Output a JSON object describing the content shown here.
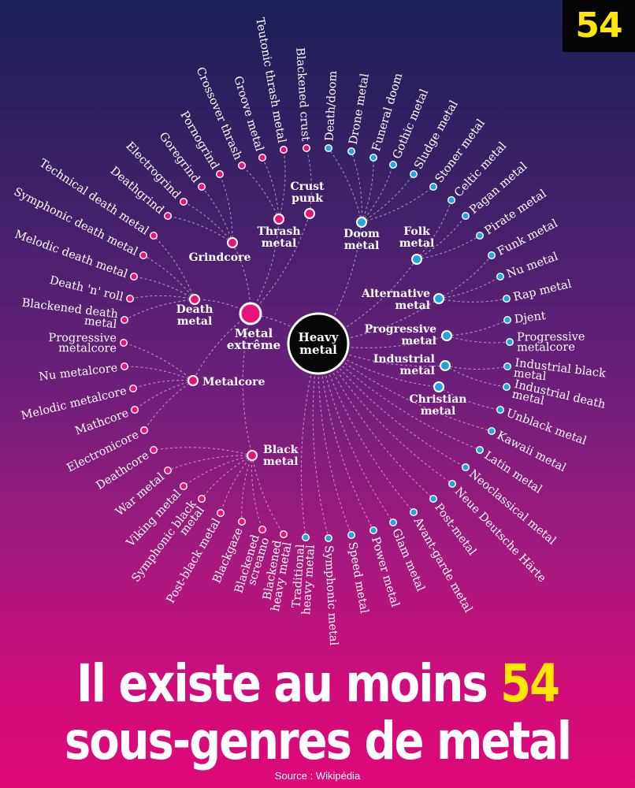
{
  "badge": "54",
  "center": {
    "label_lines": [
      "Heavy",
      "metal"
    ]
  },
  "hub_labels": {
    "metal_extreme": [
      "Metal",
      "extrême"
    ],
    "thrash": [
      "Thrash",
      "metal"
    ],
    "crust": [
      "Crust",
      "punk"
    ],
    "grindcore": [
      "Grindcore"
    ],
    "death": [
      "Death",
      "metal"
    ],
    "metalcore": [
      "Metalcore"
    ],
    "black": [
      "Black",
      "metal"
    ],
    "doom": [
      "Doom",
      "metal"
    ],
    "folk": [
      "Folk",
      "metal"
    ],
    "alternative": [
      "Alternative",
      "metal"
    ],
    "progressive": [
      "Progressive",
      "metal"
    ],
    "industrial": [
      "Industrial",
      "metal"
    ],
    "christian": [
      "Christian",
      "metal"
    ]
  },
  "colors": {
    "pink": "#e8137a",
    "blue": "#1fa7dd",
    "badge_yellow": "#ffe600"
  },
  "genres": [
    {
      "hub": "crust",
      "lines": [
        "Blackened crust"
      ]
    },
    {
      "hub": "thrash",
      "lines": [
        "Teutonic thrash metal"
      ]
    },
    {
      "hub": "thrash",
      "lines": [
        "Groove metal"
      ]
    },
    {
      "hub": "thrash",
      "lines": [
        "Crossover thrash"
      ]
    },
    {
      "hub": "grindcore",
      "lines": [
        "Pornogrind"
      ]
    },
    {
      "hub": "grindcore",
      "lines": [
        "Goregrind"
      ]
    },
    {
      "hub": "grindcore",
      "lines": [
        "Electrogrind"
      ]
    },
    {
      "hub": "grindcore",
      "lines": [
        "Deathgrind"
      ]
    },
    {
      "hub": "death",
      "lines": [
        "Technical death metal"
      ]
    },
    {
      "hub": "death",
      "lines": [
        "Symphonic death metal"
      ]
    },
    {
      "hub": "death",
      "lines": [
        "Melodic death metal"
      ]
    },
    {
      "hub": "death",
      "lines": [
        "Death 'n' roll"
      ]
    },
    {
      "hub": "death",
      "lines": [
        "Blackened death",
        "metal"
      ]
    },
    {
      "hub": "metalcore",
      "lines": [
        "Progressive",
        "metalcore"
      ]
    },
    {
      "hub": "metalcore",
      "lines": [
        "Nu metalcore"
      ]
    },
    {
      "hub": "metalcore",
      "lines": [
        "Melodic metalcore"
      ]
    },
    {
      "hub": "metalcore",
      "lines": [
        "Mathcore"
      ]
    },
    {
      "hub": "metalcore",
      "lines": [
        "Electronicore"
      ]
    },
    {
      "hub": "black",
      "lines": [
        "Deathcore"
      ]
    },
    {
      "hub": "black",
      "lines": [
        "War metal"
      ]
    },
    {
      "hub": "black",
      "lines": [
        "Viking metal"
      ]
    },
    {
      "hub": "black",
      "lines": [
        "Symphonic black",
        "metal"
      ]
    },
    {
      "hub": "black",
      "lines": [
        "Post-black metal"
      ]
    },
    {
      "hub": "black",
      "lines": [
        "Blackgaze"
      ]
    },
    {
      "hub": "black",
      "lines": [
        "Blackened",
        "screamo"
      ]
    },
    {
      "hub": "black",
      "lines": [
        "Blackened",
        "heavy metal"
      ]
    },
    {
      "hub": "center",
      "lines": [
        "Traditional",
        "heavy metal"
      ]
    },
    {
      "hub": "center",
      "lines": [
        "Symphonic metal"
      ]
    },
    {
      "hub": "center",
      "lines": [
        "Speed metal"
      ]
    },
    {
      "hub": "center",
      "lines": [
        "Power metal"
      ]
    },
    {
      "hub": "center",
      "lines": [
        "Glam metal"
      ]
    },
    {
      "hub": "center",
      "lines": [
        "Avant-garde metal"
      ]
    },
    {
      "hub": "center",
      "lines": [
        "Post-metal"
      ]
    },
    {
      "hub": "center",
      "lines": [
        "Neue Deutsche Härte"
      ]
    },
    {
      "hub": "center",
      "lines": [
        "Neoclassical metal"
      ]
    },
    {
      "hub": "center",
      "lines": [
        "Latin metal"
      ]
    },
    {
      "hub": "center",
      "lines": [
        "Kawaii metal"
      ]
    },
    {
      "hub": "christian",
      "lines": [
        "Unblack metal"
      ]
    },
    {
      "hub": "industrial",
      "lines": [
        "Industrial death",
        "metal"
      ]
    },
    {
      "hub": "industrial",
      "lines": [
        "Industrial black",
        "metal"
      ]
    },
    {
      "hub": "progressive",
      "lines": [
        "Progressive",
        "metalcore"
      ]
    },
    {
      "hub": "progressive",
      "lines": [
        "Djent"
      ]
    },
    {
      "hub": "alternative",
      "lines": [
        "Rap metal"
      ]
    },
    {
      "hub": "alternative",
      "lines": [
        "Nu metal"
      ]
    },
    {
      "hub": "alternative",
      "lines": [
        "Funk metal"
      ]
    },
    {
      "hub": "folk",
      "lines": [
        "Pirate metal"
      ]
    },
    {
      "hub": "folk",
      "lines": [
        "Pagan metal"
      ]
    },
    {
      "hub": "folk",
      "lines": [
        "Celtic metal"
      ]
    },
    {
      "hub": "doom",
      "lines": [
        "Stoner metal"
      ]
    },
    {
      "hub": "doom",
      "lines": [
        "Sludge metal"
      ]
    },
    {
      "hub": "doom",
      "lines": [
        "Gothic metal"
      ]
    },
    {
      "hub": "doom",
      "lines": [
        "Funeral doom"
      ]
    },
    {
      "hub": "doom",
      "lines": [
        "Drone metal"
      ]
    },
    {
      "hub": "doom",
      "lines": [
        "Death/doom"
      ]
    }
  ],
  "headline": {
    "line1_before": "Il existe au moins",
    "line1_number": "54",
    "line2": "sous-genres de metal"
  },
  "source": "Source : Wikipédia"
}
